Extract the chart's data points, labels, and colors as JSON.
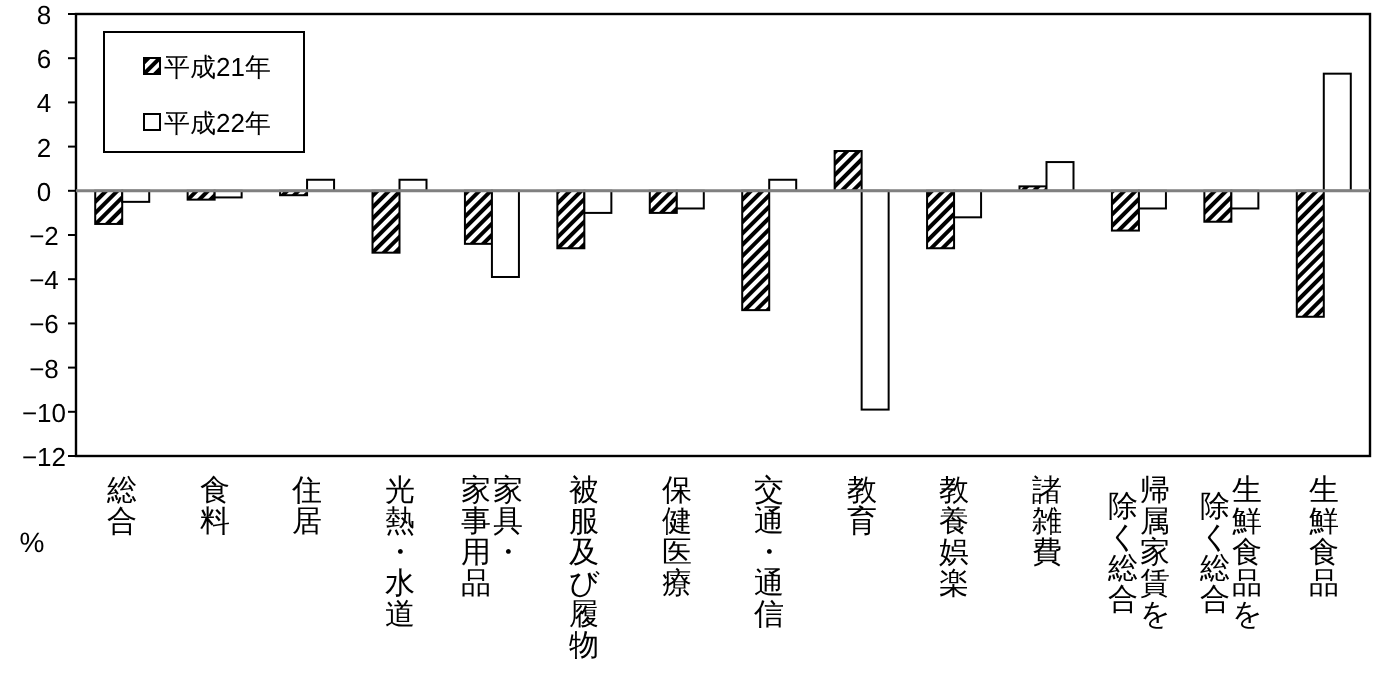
{
  "chart_data": {
    "type": "bar",
    "ylabel": "%",
    "categories": [
      "総合",
      "食料",
      "住居",
      "光熱・水道",
      "家具・家事用品",
      "被服及び履物",
      "保健医療",
      "交通・通信",
      "教育",
      "教養娯楽",
      "諸雑費",
      "帰属家賃を除く総合",
      "生鮮食品を除く総合",
      "生鮮食品"
    ],
    "series": [
      {
        "name": "平成21年",
        "color": "#000000",
        "values": [
          -1.5,
          -0.4,
          -0.2,
          -2.8,
          -2.4,
          -2.6,
          -1.0,
          -5.4,
          1.8,
          -2.6,
          0.2,
          -1.8,
          -1.4,
          -5.7
        ]
      },
      {
        "name": "平成22年",
        "color": "#ffffff",
        "values": [
          -0.5,
          -0.3,
          0.5,
          0.5,
          -3.9,
          -1.0,
          -0.8,
          0.5,
          -9.9,
          -1.2,
          1.3,
          -0.8,
          -0.8,
          5.3
        ]
      }
    ],
    "ylim": [
      -12,
      8
    ],
    "yticks": [
      -12,
      -10,
      -8,
      -6,
      -4,
      -2,
      0,
      2,
      4,
      6,
      8
    ],
    "legend": "top left"
  }
}
